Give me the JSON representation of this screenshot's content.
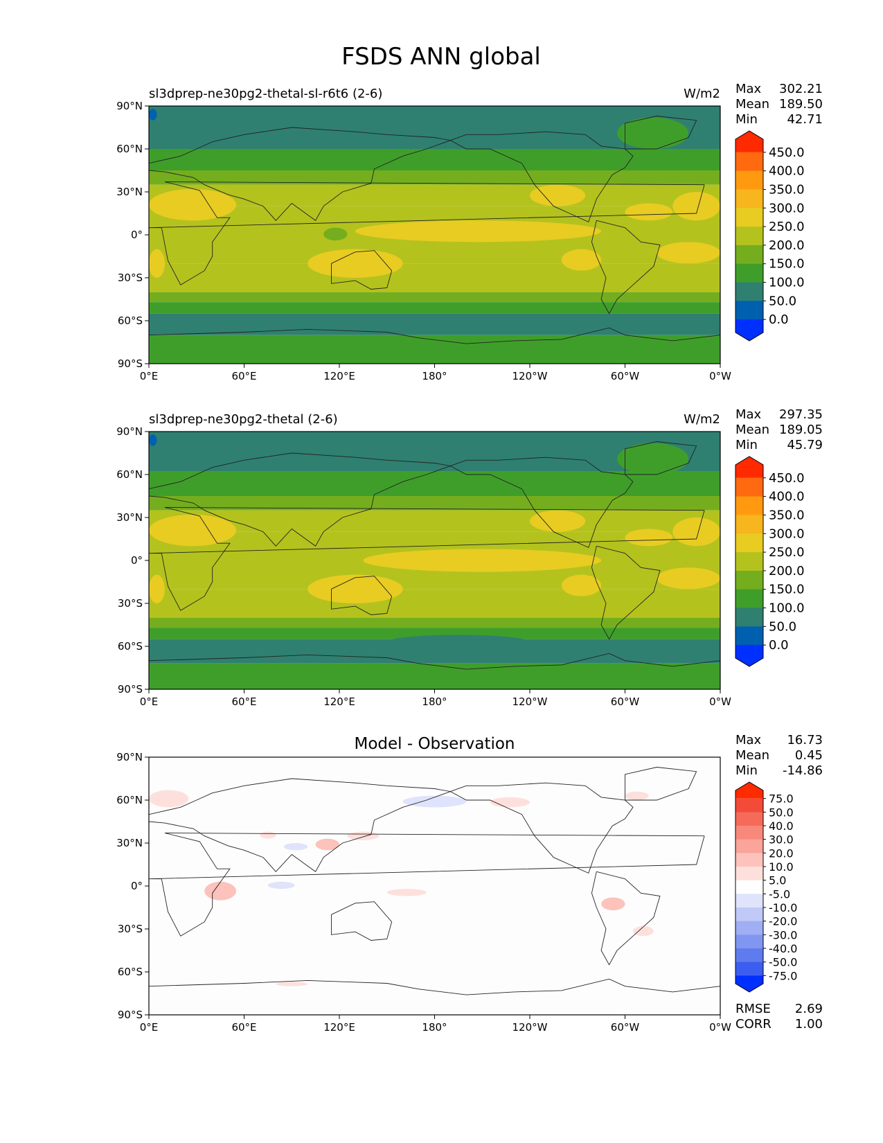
{
  "figure": {
    "title": "FSDS ANN global"
  },
  "chart_data": [
    {
      "type": "heatmap",
      "title": "sl3dprep-ne30pg2-thetal-sl-r6t6 (2-6)",
      "units": "W/m2",
      "stats": {
        "max_label": "Max",
        "max": "302.21",
        "mean_label": "Mean",
        "mean": "189.50",
        "min_label": "Min",
        "min": "42.71"
      },
      "xticks": [
        "0°E",
        "60°E",
        "120°E",
        "180°",
        "120°W",
        "60°W",
        "0°W"
      ],
      "yticks": [
        "90°N",
        "60°N",
        "30°N",
        "0°",
        "30°S",
        "60°S",
        "90°S"
      ],
      "xlim": [
        0,
        360
      ],
      "ylim": [
        -90,
        90
      ],
      "colorbar": {
        "levels": [
          "450.0",
          "400.0",
          "350.0",
          "300.0",
          "250.0",
          "200.0",
          "150.0",
          "100.0",
          "50.0",
          "0.0"
        ],
        "colors": [
          "#ff2a00",
          "#ff6a10",
          "#ff9a10",
          "#f7b51e",
          "#e8cc22",
          "#b4c21e",
          "#74ae1e",
          "#3f9e2a",
          "#2f8070",
          "#0060b0",
          "#0030ff"
        ]
      },
      "bands": [
        {
          "lat": [
            60,
            90
          ],
          "value": 100,
          "color": "#2f8070"
        },
        {
          "lat": [
            45,
            60
          ],
          "value": 125,
          "color": "#3f9e2a"
        },
        {
          "lat": [
            35,
            45
          ],
          "value": 175,
          "color": "#74ae1e"
        },
        {
          "lat": [
            20,
            35
          ],
          "value": 225,
          "color": "#b4c21e"
        },
        {
          "lat": [
            -20,
            20
          ],
          "value": 230,
          "color": "#b4c21e"
        },
        {
          "lat": [
            -40,
            -20
          ],
          "value": 210,
          "color": "#b4c21e"
        },
        {
          "lat": [
            -47,
            -40
          ],
          "value": 160,
          "color": "#74ae1e"
        },
        {
          "lat": [
            -55,
            -47
          ],
          "value": 125,
          "color": "#3f9e2a"
        },
        {
          "lat": [
            -70,
            -55
          ],
          "value": 95,
          "color": "#2f8070"
        },
        {
          "lat": [
            -90,
            -70
          ],
          "value": 130,
          "color": "#3f9e2a"
        }
      ],
      "patches": [
        {
          "lon": [
            130,
            285
          ],
          "lat": [
            -5,
            10
          ],
          "value": 260,
          "color": "#e8cc22"
        },
        {
          "lon": [
            330,
            360
          ],
          "lat": [
            10,
            30
          ],
          "value": 270,
          "color": "#e8cc22"
        },
        {
          "lon": [
            0,
            55
          ],
          "lat": [
            10,
            32
          ],
          "value": 275,
          "color": "#e8cc22"
        },
        {
          "lon": [
            240,
            275
          ],
          "lat": [
            20,
            35
          ],
          "value": 255,
          "color": "#e8cc22"
        },
        {
          "lon": [
            300,
            330
          ],
          "lat": [
            10,
            22
          ],
          "value": 255,
          "color": "#e8cc22"
        },
        {
          "lon": [
            320,
            360
          ],
          "lat": [
            -20,
            -5
          ],
          "value": 255,
          "color": "#e8cc22"
        },
        {
          "lon": [
            0,
            10
          ],
          "lat": [
            -30,
            -10
          ],
          "value": 255,
          "color": "#e8cc22"
        },
        {
          "lon": [
            100,
            160
          ],
          "lat": [
            -30,
            -10
          ],
          "value": 255,
          "color": "#e8cc22"
        },
        {
          "lon": [
            260,
            285
          ],
          "lat": [
            -25,
            -10
          ],
          "value": 255,
          "color": "#e8cc22"
        },
        {
          "lon": [
            295,
            340
          ],
          "lat": [
            60,
            82
          ],
          "value": 130,
          "color": "#3f9e2a"
        },
        {
          "lon": [
            110,
            125
          ],
          "lat": [
            -4,
            5
          ],
          "value": 175,
          "color": "#74ae1e"
        },
        {
          "lon": [
            0,
            5
          ],
          "lat": [
            80,
            88
          ],
          "value": 45,
          "color": "#0060b0"
        }
      ]
    },
    {
      "type": "heatmap",
      "title": "sl3dprep-ne30pg2-thetal (2-6)",
      "units": "W/m2",
      "stats": {
        "max_label": "Max",
        "max": "297.35",
        "mean_label": "Mean",
        "mean": "189.05",
        "min_label": "Min",
        "min": "45.79"
      },
      "xticks": [
        "0°E",
        "60°E",
        "120°E",
        "180°",
        "120°W",
        "60°W",
        "0°W"
      ],
      "yticks": [
        "90°N",
        "60°N",
        "30°N",
        "0°",
        "30°S",
        "60°S",
        "90°S"
      ],
      "xlim": [
        0,
        360
      ],
      "ylim": [
        -90,
        90
      ],
      "colorbar": {
        "levels": [
          "450.0",
          "400.0",
          "350.0",
          "300.0",
          "250.0",
          "200.0",
          "150.0",
          "100.0",
          "50.0",
          "0.0"
        ],
        "colors": [
          "#ff2a00",
          "#ff6a10",
          "#ff9a10",
          "#f7b51e",
          "#e8cc22",
          "#b4c21e",
          "#74ae1e",
          "#3f9e2a",
          "#2f8070",
          "#0060b0",
          "#0030ff"
        ]
      },
      "bands": [
        {
          "lat": [
            62,
            90
          ],
          "value": 95,
          "color": "#2f8070"
        },
        {
          "lat": [
            45,
            62
          ],
          "value": 125,
          "color": "#3f9e2a"
        },
        {
          "lat": [
            35,
            45
          ],
          "value": 175,
          "color": "#74ae1e"
        },
        {
          "lat": [
            20,
            35
          ],
          "value": 225,
          "color": "#b4c21e"
        },
        {
          "lat": [
            -20,
            20
          ],
          "value": 230,
          "color": "#b4c21e"
        },
        {
          "lat": [
            -40,
            -20
          ],
          "value": 210,
          "color": "#b4c21e"
        },
        {
          "lat": [
            -47,
            -40
          ],
          "value": 160,
          "color": "#74ae1e"
        },
        {
          "lat": [
            -55,
            -47
          ],
          "value": 125,
          "color": "#3f9e2a"
        },
        {
          "lat": [
            -72,
            -55
          ],
          "value": 95,
          "color": "#2f8070"
        },
        {
          "lat": [
            -90,
            -72
          ],
          "value": 130,
          "color": "#3f9e2a"
        }
      ],
      "patches": [
        {
          "lon": [
            135,
            285
          ],
          "lat": [
            -8,
            8
          ],
          "value": 260,
          "color": "#e8cc22"
        },
        {
          "lon": [
            330,
            360
          ],
          "lat": [
            10,
            30
          ],
          "value": 270,
          "color": "#e8cc22"
        },
        {
          "lon": [
            0,
            55
          ],
          "lat": [
            10,
            32
          ],
          "value": 275,
          "color": "#e8cc22"
        },
        {
          "lon": [
            240,
            275
          ],
          "lat": [
            20,
            35
          ],
          "value": 255,
          "color": "#e8cc22"
        },
        {
          "lon": [
            300,
            330
          ],
          "lat": [
            10,
            22
          ],
          "value": 255,
          "color": "#e8cc22"
        },
        {
          "lon": [
            320,
            360
          ],
          "lat": [
            -20,
            -5
          ],
          "value": 255,
          "color": "#e8cc22"
        },
        {
          "lon": [
            0,
            10
          ],
          "lat": [
            -30,
            -10
          ],
          "value": 255,
          "color": "#e8cc22"
        },
        {
          "lon": [
            100,
            160
          ],
          "lat": [
            -30,
            -10
          ],
          "value": 255,
          "color": "#e8cc22"
        },
        {
          "lon": [
            260,
            285
          ],
          "lat": [
            -25,
            -10
          ],
          "value": 255,
          "color": "#e8cc22"
        },
        {
          "lon": [
            295,
            340
          ],
          "lat": [
            60,
            82
          ],
          "value": 130,
          "color": "#3f9e2a"
        },
        {
          "lon": [
            150,
            240
          ],
          "lat": [
            -62,
            -52
          ],
          "value": 95,
          "color": "#2f8070"
        },
        {
          "lon": [
            0,
            5
          ],
          "lat": [
            80,
            88
          ],
          "value": 45,
          "color": "#0060b0"
        }
      ]
    },
    {
      "type": "heatmap",
      "title": "Model - Observation",
      "units": "",
      "stats": {
        "max_label": "Max",
        "max": "16.73",
        "mean_label": "Mean",
        "mean": "0.45",
        "min_label": "Min",
        "min": "-14.86"
      },
      "metrics": {
        "rmse_label": "RMSE",
        "rmse": "2.69",
        "corr_label": "CORR",
        "corr": "1.00"
      },
      "xticks": [
        "0°E",
        "60°E",
        "120°E",
        "180°",
        "120°W",
        "60°W",
        "0°W"
      ],
      "yticks": [
        "90°N",
        "60°N",
        "30°N",
        "0°",
        "30°S",
        "60°S",
        "90°S"
      ],
      "xlim": [
        0,
        360
      ],
      "ylim": [
        -90,
        90
      ],
      "colorbar": {
        "levels": [
          "75.0",
          "50.0",
          "40.0",
          "30.0",
          "20.0",
          "10.0",
          "5.0",
          "-5.0",
          "-10.0",
          "-20.0",
          "-30.0",
          "-40.0",
          "-50.0",
          "-75.0"
        ],
        "colors": [
          "#ff2a00",
          "#f44a38",
          "#f66a5a",
          "#f8887a",
          "#faa49a",
          "#fcc2bb",
          "#fde0dc",
          "#ffffff",
          "#dfe3fb",
          "#c0c9f7",
          "#a0aff3",
          "#8096f0",
          "#5f7cee",
          "#3c5ef0",
          "#0030ff"
        ]
      },
      "bands": [
        {
          "lat": [
            -90,
            90
          ],
          "value": 0,
          "color": "#fdfdfd"
        }
      ],
      "patches": [
        {
          "lon": [
            0,
            25
          ],
          "lat": [
            55,
            67
          ],
          "value": 3,
          "color": "#fde0dc"
        },
        {
          "lon": [
            70,
            80
          ],
          "lat": [
            33,
            38
          ],
          "value": 4,
          "color": "#fde0dc"
        },
        {
          "lon": [
            105,
            120
          ],
          "lat": [
            25,
            33
          ],
          "value": 6,
          "color": "#fcc2bb"
        },
        {
          "lon": [
            125,
            145
          ],
          "lat": [
            32,
            38
          ],
          "value": 4,
          "color": "#fde0dc"
        },
        {
          "lon": [
            35,
            55
          ],
          "lat": [
            -10,
            3
          ],
          "value": 6,
          "color": "#fcc2bb"
        },
        {
          "lon": [
            75,
            92
          ],
          "lat": [
            -2,
            3
          ],
          "value": -4,
          "color": "#dfe3fb"
        },
        {
          "lon": [
            85,
            100
          ],
          "lat": [
            25,
            30
          ],
          "value": -4,
          "color": "#dfe3fb"
        },
        {
          "lon": [
            150,
            175
          ],
          "lat": [
            -7,
            -2
          ],
          "value": 4,
          "color": "#fde0dc"
        },
        {
          "lon": [
            160,
            200
          ],
          "lat": [
            55,
            63
          ],
          "value": -4,
          "color": "#dfe3fb"
        },
        {
          "lon": [
            215,
            240
          ],
          "lat": [
            55,
            62
          ],
          "value": 4,
          "color": "#fde0dc"
        },
        {
          "lon": [
            300,
            315
          ],
          "lat": [
            60,
            66
          ],
          "value": 3,
          "color": "#fde0dc"
        },
        {
          "lon": [
            285,
            300
          ],
          "lat": [
            -17,
            -8
          ],
          "value": 5,
          "color": "#fcc2bb"
        },
        {
          "lon": [
            305,
            318
          ],
          "lat": [
            -35,
            -28
          ],
          "value": 4,
          "color": "#fde0dc"
        },
        {
          "lon": [
            80,
            100
          ],
          "lat": [
            -70,
            -67
          ],
          "value": 3,
          "color": "#fde0dc"
        }
      ]
    }
  ]
}
